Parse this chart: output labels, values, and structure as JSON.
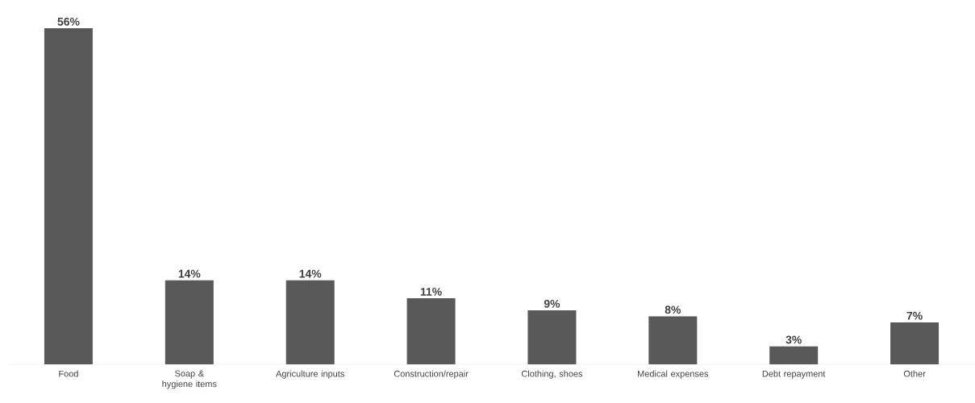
{
  "chart_data": {
    "type": "bar",
    "categories": [
      "Food",
      "Soap & hygiene items",
      "Agriculture inputs",
      "Construction/repair",
      "Clothing, shoes",
      "Medical expenses",
      "Debt repayment",
      "Other"
    ],
    "values": [
      56,
      14,
      14,
      11,
      9,
      8,
      3,
      7
    ],
    "value_labels": [
      "56%",
      "14%",
      "14%",
      "11%",
      "9%",
      "8%",
      "3%",
      "7%"
    ],
    "color": "#595959"
  }
}
